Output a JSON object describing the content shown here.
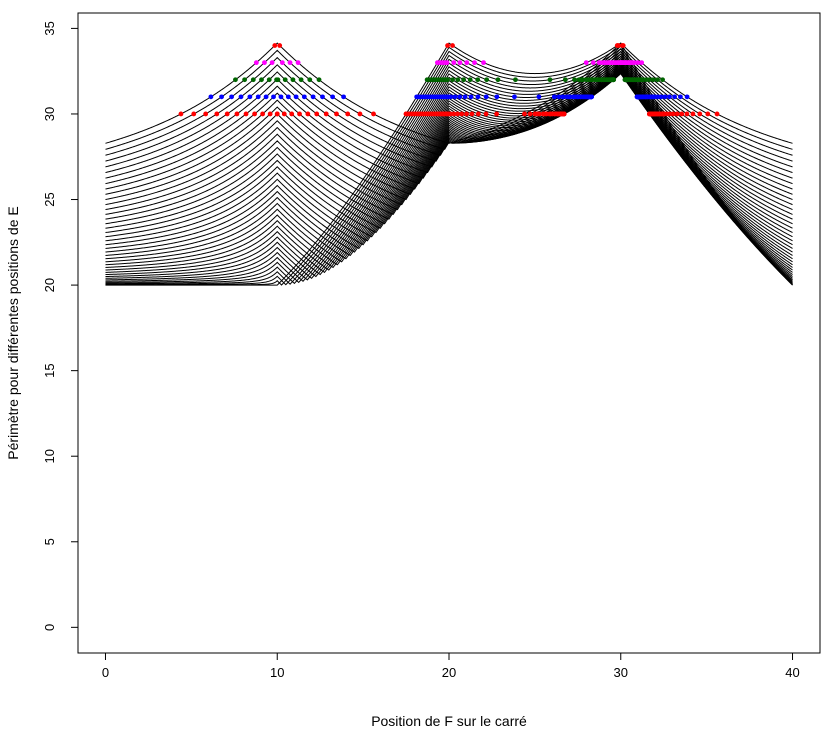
{
  "chart_data": {
    "type": "line",
    "title": "",
    "xlabel": "Position de F sur le carré",
    "ylabel": "Périmètre pour différentes positions de E",
    "xlim": [
      -1.6,
      41.6
    ],
    "ylim": [
      -1.5,
      35.9
    ],
    "x_ticks": [
      0,
      10,
      20,
      30,
      40
    ],
    "y_ticks": [
      0,
      5,
      10,
      15,
      20,
      25,
      30,
      35
    ],
    "x_tick_labels": [
      "0",
      "10",
      "20",
      "30",
      "40"
    ],
    "y_tick_labels": [
      "0",
      "5",
      "10",
      "15",
      "20",
      "25",
      "30",
      "35"
    ],
    "grid": false,
    "legend": "none",
    "series_description": "Perimeter of triangle AEF vs position of F on the square (side 10), one curve per position of E (E from 0 to 10 in steps of 0.5 on the right side, E from 10 to 20 on the top side)",
    "series_count": 41,
    "line_color": "#000000",
    "highlight_levels": [
      {
        "level": 34,
        "color": "#ff0000"
      },
      {
        "level": 33,
        "color": "#ff00ff"
      },
      {
        "level": 32,
        "color": "#006400"
      },
      {
        "level": 31,
        "color": "#0000ff"
      },
      {
        "level": 30,
        "color": "#ff0000"
      }
    ]
  }
}
